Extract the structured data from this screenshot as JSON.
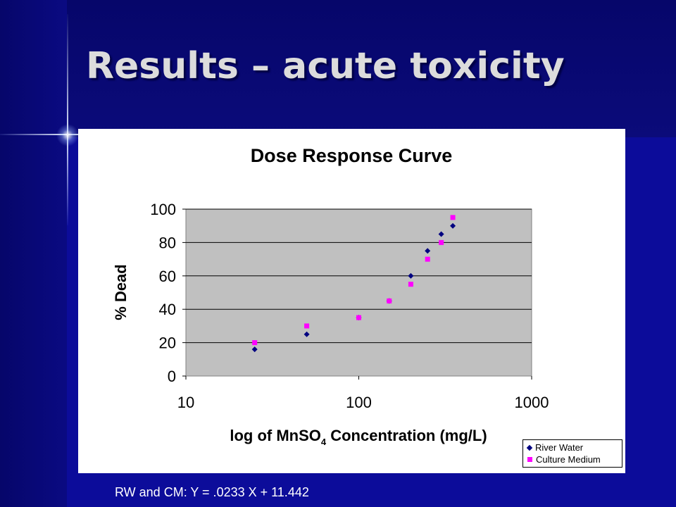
{
  "slide": {
    "title": "Results – acute toxicity",
    "equation": "RW and CM: Y = .0233 X + 11.442"
  },
  "colors": {
    "background": "#0a0a8c",
    "title_text": "#dcdcdc",
    "plot_area": "#c0c0c0",
    "river_water": "#000080",
    "culture_medium": "#ff00ff"
  },
  "chart_data": {
    "type": "scatter",
    "title": "Dose Response Curve",
    "xlabel_main": "log of MnSO",
    "xlabel_sub": "4",
    "xlabel_rest": " Concentration (mg/L)",
    "ylabel": "% Dead",
    "xscale": "log",
    "xlim": [
      10,
      1000
    ],
    "ylim": [
      0,
      100
    ],
    "xticks": [
      10,
      100,
      1000
    ],
    "yticks": [
      0,
      20,
      40,
      60,
      80,
      100
    ],
    "grid": "horizontal",
    "legend_position": "bottom-right",
    "series": [
      {
        "name": "River Water",
        "marker": "diamond",
        "points": [
          [
            25,
            16
          ],
          [
            50,
            25
          ],
          [
            100,
            35
          ],
          [
            150,
            45
          ],
          [
            200,
            60
          ],
          [
            250,
            75
          ],
          [
            300,
            85
          ],
          [
            350,
            90
          ]
        ]
      },
      {
        "name": "Culture Medium",
        "marker": "square",
        "points": [
          [
            25,
            20
          ],
          [
            50,
            30
          ],
          [
            100,
            35
          ],
          [
            150,
            45
          ],
          [
            200,
            55
          ],
          [
            250,
            70
          ],
          [
            300,
            80
          ],
          [
            350,
            95
          ]
        ]
      }
    ]
  }
}
